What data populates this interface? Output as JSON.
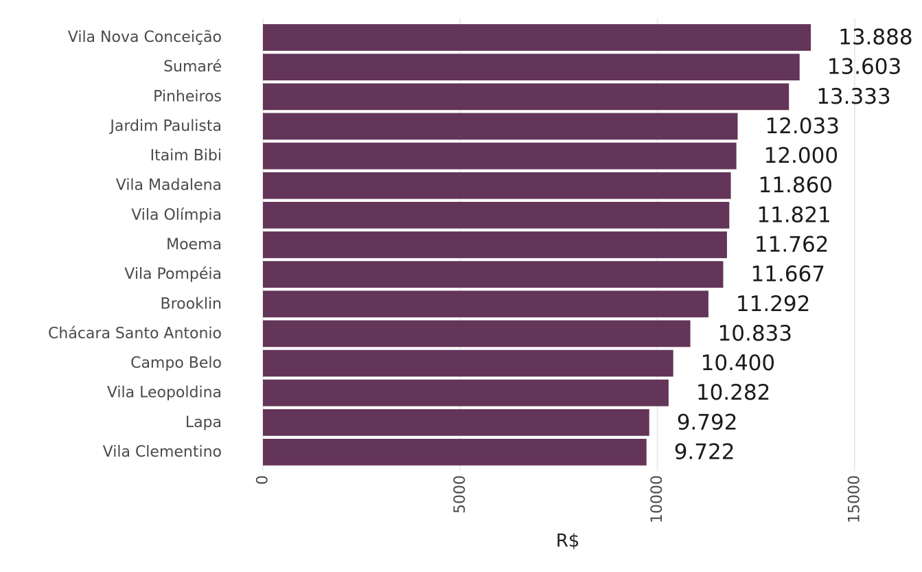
{
  "chart_data": {
    "type": "bar",
    "orientation": "horizontal",
    "categories": [
      "Vila Nova Conceição",
      "Sumaré",
      "Pinheiros",
      "Jardim Paulista",
      "Itaim Bibi",
      "Vila Madalena",
      "Vila Olímpia",
      "Moema",
      "Vila Pompéia",
      "Brooklin",
      "Chácara Santo Antonio",
      "Campo Belo",
      "Vila Leopoldina",
      "Lapa",
      "Vila Clementino"
    ],
    "values": [
      13888,
      13603,
      13333,
      12033,
      12000,
      11860,
      11821,
      11762,
      11667,
      11292,
      10833,
      10400,
      10282,
      9792,
      9722
    ],
    "value_labels": [
      "13.888",
      "13.603",
      "13.333",
      "12.033",
      "12.000",
      "11.860",
      "11.821",
      "11.762",
      "11.667",
      "11.292",
      "10.833",
      "10.400",
      "10.282",
      "9.792",
      "9.722"
    ],
    "title": "",
    "xlabel": "R$",
    "ylabel": "",
    "xlim": [
      0,
      15000
    ],
    "x_ticks": [
      0,
      5000,
      10000,
      15000
    ],
    "x_tick_labels": [
      "0",
      "5000",
      "10000",
      "15000"
    ],
    "x_tick_label_rotation": "vertical",
    "grid": "vertical major gridlines",
    "legend": "none",
    "colors": {
      "bar": "#633558",
      "grid": "#ebebeb",
      "text": "#4a4a4a",
      "value_text": "#1a1a1a",
      "background": "#ffffff"
    }
  }
}
